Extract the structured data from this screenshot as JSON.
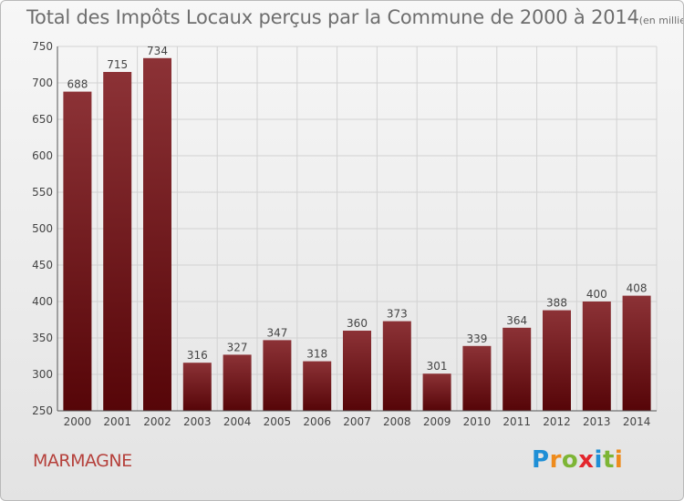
{
  "chart_data": {
    "type": "bar",
    "title": "Total des Impôts Locaux perçus par la Commune de 2000 à 2014",
    "title_unit": "(en milliers d'€)",
    "categories": [
      "2000",
      "2001",
      "2002",
      "2003",
      "2004",
      "2005",
      "2006",
      "2007",
      "2008",
      "2009",
      "2010",
      "2011",
      "2012",
      "2013",
      "2014"
    ],
    "values": [
      688,
      715,
      734,
      316,
      327,
      347,
      318,
      360,
      373,
      301,
      339,
      364,
      388,
      400,
      408
    ],
    "ylim": [
      250,
      750
    ],
    "yticks": [
      250,
      300,
      350,
      400,
      450,
      500,
      550,
      600,
      650,
      700,
      750
    ],
    "grid": true,
    "bar_color": "#7a1e22",
    "bar_color_dark": "#5a0c10",
    "xlabel": "",
    "ylabel": ""
  },
  "footer": {
    "commune": "MARMAGNE",
    "logo": [
      "P",
      "r",
      "o",
      "x",
      "i",
      "t",
      "i"
    ]
  }
}
